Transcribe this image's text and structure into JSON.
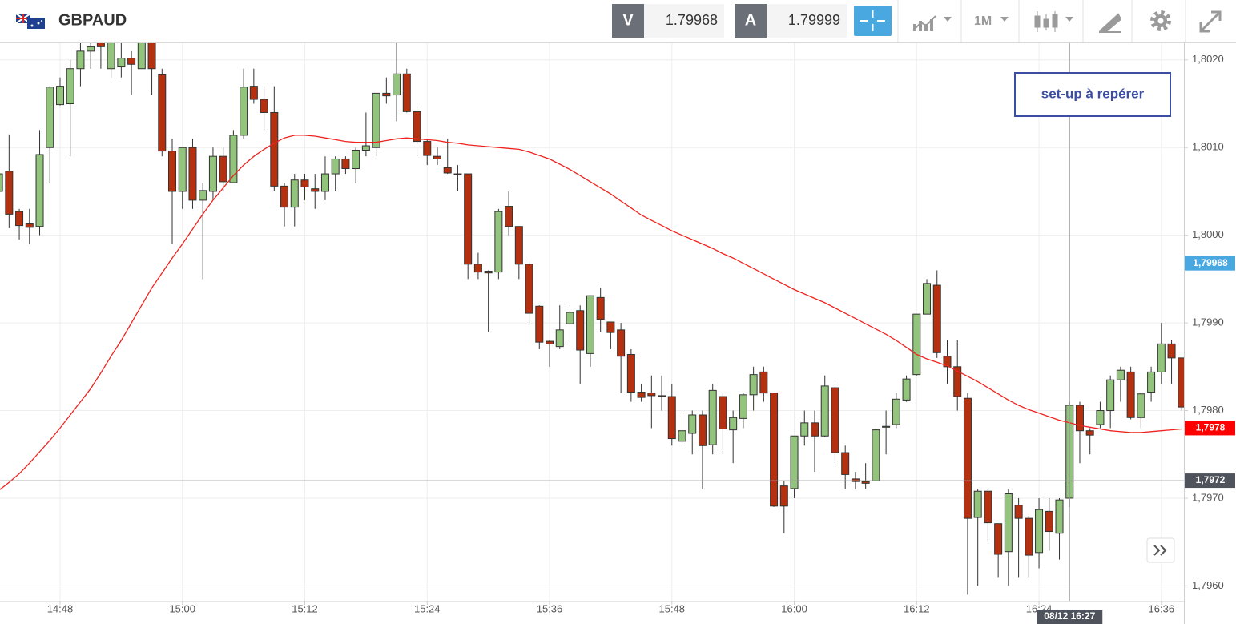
{
  "toolbar": {
    "symbol": "GBPAUD",
    "bid_label": "V",
    "bid": "1.79968",
    "ask_label": "A",
    "ask": "1.79999",
    "timeframe": "1M"
  },
  "chart_data": {
    "type": "candlestick",
    "annotation": "set-up à repérer",
    "up_color": "#93c47d",
    "down_color": "#b5300e",
    "grid": true,
    "ylim": [
      1.79583,
      1.80219
    ],
    "yticks": [
      {
        "value": 1.796,
        "label": "1,7960"
      },
      {
        "value": 1.797,
        "label": "1,7970"
      },
      {
        "value": 1.798,
        "label": "1,7980"
      },
      {
        "value": 1.799,
        "label": "1,7990"
      },
      {
        "value": 1.8,
        "label": "1,8000"
      },
      {
        "value": 1.801,
        "label": "1,8010"
      },
      {
        "value": 1.802,
        "label": "1,8020"
      }
    ],
    "categories": [
      null,
      null,
      null,
      null,
      null,
      null,
      "14:48",
      null,
      null,
      null,
      null,
      null,
      null,
      null,
      null,
      null,
      null,
      null,
      "15:00",
      null,
      null,
      null,
      null,
      null,
      null,
      null,
      null,
      null,
      null,
      null,
      "15:12",
      null,
      null,
      null,
      null,
      null,
      null,
      null,
      null,
      null,
      null,
      null,
      "15:24",
      null,
      null,
      null,
      null,
      null,
      null,
      null,
      null,
      null,
      null,
      null,
      "15:36",
      null,
      null,
      null,
      null,
      null,
      null,
      null,
      null,
      null,
      null,
      null,
      "15:48",
      null,
      null,
      null,
      null,
      null,
      null,
      null,
      null,
      null,
      null,
      null,
      "16:00",
      null,
      null,
      null,
      null,
      null,
      null,
      null,
      null,
      null,
      null,
      null,
      "16:12",
      null,
      null,
      null,
      null,
      null,
      null,
      null,
      null,
      null,
      null,
      null,
      "16:24",
      null,
      null,
      null,
      null,
      null,
      null,
      null,
      null,
      null,
      null,
      null,
      "16:36",
      null,
      null
    ],
    "open": [
      1.8005,
      1.80073,
      1.80027,
      1.80013,
      1.8001,
      1.801,
      1.80149,
      1.8015,
      1.8019,
      1.8021,
      1.8022,
      1.8019,
      1.80192,
      1.80202,
      1.8019,
      1.8022,
      1.80183,
      1.80096,
      1.8005,
      1.801,
      1.8004,
      1.8005,
      1.8009,
      1.8006,
      1.80114,
      1.8017,
      1.80155,
      1.8014,
      1.80056,
      1.80032,
      1.80063,
      1.80053,
      1.8005,
      1.8007,
      1.80087,
      1.80076,
      1.80097,
      1.801,
      1.80162,
      1.8016,
      1.80184,
      1.80141,
      1.80107,
      1.8009,
      1.80077,
      1.8007,
      1.8007,
      1.79967,
      1.79959,
      1.79958,
      1.80033,
      1.8001,
      1.79967,
      1.79919,
      1.79879,
      1.79873,
      1.79899,
      1.79914,
      1.79865,
      1.79929,
      1.79901,
      1.79892,
      1.79864,
      1.79821,
      1.7982,
      1.79817,
      1.79816,
      1.79765,
      1.79774,
      1.79795,
      1.79761,
      1.79816,
      1.79778,
      1.79791,
      1.79818,
      1.79844,
      1.7982,
      1.79714,
      1.79711,
      1.79771,
      1.79786,
      1.79771,
      1.79826,
      1.79752,
      1.79722,
      1.79719,
      1.7972,
      1.79781,
      1.79784,
      1.79812,
      1.79841,
      1.7991,
      1.79943,
      1.79862,
      1.7985,
      1.79814,
      1.79678,
      1.79708,
      1.79671,
      1.79639,
      1.79692,
      1.79677,
      1.79638,
      1.79685,
      1.7966,
      1.797,
      1.79806,
      1.79777,
      1.79784,
      1.798,
      1.79835,
      1.79844,
      1.79792,
      1.79821,
      1.79844,
      1.79876,
      1.7986
    ],
    "high": [
      1.8008,
      1.80115,
      1.8003,
      1.8003,
      1.8012,
      1.8017,
      1.8018,
      1.802,
      1.8022,
      1.8023,
      1.8023,
      1.8023,
      1.8022,
      1.8021,
      1.8023,
      1.8023,
      1.8019,
      1.8011,
      1.801,
      1.8011,
      1.8006,
      1.801,
      1.801,
      1.8012,
      1.8019,
      1.8019,
      1.8017,
      1.8017,
      1.8006,
      1.8007,
      1.8007,
      1.8007,
      1.8009,
      1.8009,
      1.8009,
      1.801,
      1.8014,
      1.8016,
      1.8018,
      1.8022,
      1.8019,
      1.8015,
      1.8011,
      1.801,
      1.8011,
      1.8008,
      1.8007,
      1.7998,
      1.7996,
      1.8003,
      1.8005,
      1.8001,
      1.7997,
      1.7992,
      1.7988,
      1.7992,
      1.7992,
      1.7992,
      1.7993,
      1.7994,
      1.799,
      1.799,
      1.7987,
      1.7983,
      1.7984,
      1.7984,
      1.7983,
      1.798,
      1.798,
      1.798,
      1.7983,
      1.7982,
      1.798,
      1.7982,
      1.7985,
      1.7985,
      1.7982,
      1.7972,
      1.7977,
      1.798,
      1.798,
      1.7984,
      1.7983,
      1.7976,
      1.7973,
      1.7974,
      1.7978,
      1.798,
      1.7982,
      1.7984,
      1.7991,
      1.7995,
      1.7996,
      1.7988,
      1.7988,
      1.7982,
      1.7971,
      1.7971,
      1.7967,
      1.7971,
      1.797,
      1.7968,
      1.797,
      1.797,
      1.797,
      1.7981,
      1.7981,
      1.7978,
      1.7981,
      1.7984,
      1.7985,
      1.7985,
      1.7982,
      1.7985,
      1.799,
      1.7988,
      1.7986
    ],
    "low": [
      1.8003,
      1.80008,
      1.79995,
      1.7999,
      1.8,
      1.8006,
      1.80148,
      1.8009,
      1.8017,
      1.8019,
      1.8019,
      1.8018,
      1.8018,
      1.8016,
      1.8019,
      1.8016,
      1.8009,
      1.7999,
      1.8003,
      1.8003,
      1.7995,
      1.8004,
      1.8005,
      1.8006,
      1.8011,
      1.8015,
      1.8012,
      1.8005,
      1.8001,
      1.8001,
      1.8004,
      1.8003,
      1.8004,
      1.8005,
      1.8007,
      1.8006,
      1.8009,
      1.8009,
      1.8015,
      1.8013,
      1.8014,
      1.8009,
      1.8008,
      1.8008,
      1.8007,
      1.8005,
      1.7995,
      1.7995,
      1.7989,
      1.7995,
      1.8,
      1.7995,
      1.799,
      1.7987,
      1.7985,
      1.7987,
      1.7988,
      1.7983,
      1.7985,
      1.7989,
      1.7987,
      1.7982,
      1.7981,
      1.7981,
      1.7978,
      1.798,
      1.7976,
      1.7976,
      1.7975,
      1.7971,
      1.7975,
      1.7975,
      1.7974,
      1.7978,
      1.798,
      1.7981,
      1.7969,
      1.7966,
      1.797,
      1.7976,
      1.7973,
      1.7977,
      1.7974,
      1.7971,
      1.7971,
      1.7971,
      1.7972,
      1.7975,
      1.7978,
      1.7981,
      1.7984,
      1.7991,
      1.7986,
      1.7983,
      1.798,
      1.7959,
      1.796,
      1.7965,
      1.7961,
      1.796,
      1.7961,
      1.7961,
      1.7962,
      1.7964,
      1.7963,
      1.7969,
      1.7974,
      1.7975,
      1.7978,
      1.7978,
      1.7981,
      1.7979,
      1.7978,
      1.7981,
      1.7983,
      1.7983,
      1.798
    ],
    "close": [
      1.8007,
      1.80024,
      1.80011,
      1.80009,
      1.80092,
      1.80169,
      1.8017,
      1.8019,
      1.8021,
      1.80215,
      1.80215,
      1.8022,
      1.80202,
      1.80195,
      1.8022,
      1.8019,
      1.80096,
      1.8005,
      1.801,
      1.8004,
      1.80051,
      1.8009,
      1.80061,
      1.80114,
      1.80169,
      1.80155,
      1.8014,
      1.80056,
      1.80032,
      1.80063,
      1.80055,
      1.8005,
      1.8007,
      1.80087,
      1.80076,
      1.80097,
      1.80102,
      1.80162,
      1.80159,
      1.80184,
      1.80141,
      1.80107,
      1.80091,
      1.80087,
      1.80071,
      1.80069,
      1.79967,
      1.79958,
      1.79957,
      1.80027,
      1.8001,
      1.79967,
      1.79911,
      1.79878,
      1.79876,
      1.79892,
      1.79912,
      1.79869,
      1.79931,
      1.79904,
      1.79889,
      1.79862,
      1.79821,
      1.79815,
      1.79817,
      1.79816,
      1.79768,
      1.79777,
      1.79795,
      1.7976,
      1.79823,
      1.79779,
      1.79792,
      1.79818,
      1.79841,
      1.7982,
      1.79691,
      1.79691,
      1.79771,
      1.79786,
      1.79771,
      1.79828,
      1.79752,
      1.79727,
      1.79719,
      1.79717,
      1.79778,
      1.79782,
      1.79813,
      1.79836,
      1.7991,
      1.79945,
      1.79866,
      1.7985,
      1.79816,
      1.79677,
      1.79708,
      1.79672,
      1.79636,
      1.79705,
      1.79677,
      1.79635,
      1.79687,
      1.79662,
      1.79698,
      1.79806,
      1.79777,
      1.79772,
      1.798,
      1.79835,
      1.79846,
      1.79792,
      1.79819,
      1.79844,
      1.79876,
      1.7986,
      1.79804
    ],
    "moving_average": {
      "color": "#f0231f",
      "values": [
        1.79709,
        1.79718,
        1.79728,
        1.7974,
        1.79753,
        1.79766,
        1.7978,
        1.79795,
        1.7981,
        1.79825,
        1.79843,
        1.79862,
        1.7988,
        1.799,
        1.7992,
        1.7994,
        1.79957,
        1.79974,
        1.7999,
        1.80007,
        1.80024,
        1.8004,
        1.80054,
        1.80068,
        1.8008,
        1.8009,
        1.80098,
        1.80105,
        1.80111,
        1.80114,
        1.80114,
        1.80113,
        1.80111,
        1.80109,
        1.80107,
        1.80106,
        1.80106,
        1.80106,
        1.80108,
        1.8011,
        1.80111,
        1.8011,
        1.80109,
        1.80108,
        1.80106,
        1.80105,
        1.80103,
        1.80102,
        1.80101,
        1.801,
        1.80099,
        1.80098,
        1.80095,
        1.80091,
        1.80087,
        1.80081,
        1.80075,
        1.80068,
        1.80061,
        1.80054,
        1.80047,
        1.80039,
        1.80031,
        1.80023,
        1.80017,
        1.80011,
        1.80005,
        1.8,
        1.79995,
        1.7999,
        1.79985,
        1.79979,
        1.79974,
        1.79968,
        1.79962,
        1.79956,
        1.7995,
        1.79944,
        1.79938,
        1.79933,
        1.79928,
        1.79923,
        1.79917,
        1.79911,
        1.79905,
        1.79899,
        1.79893,
        1.79887,
        1.7988,
        1.79872,
        1.79864,
        1.79859,
        1.79855,
        1.79851,
        1.79845,
        1.79839,
        1.79833,
        1.79826,
        1.79819,
        1.79812,
        1.79806,
        1.79801,
        1.79797,
        1.79793,
        1.79789,
        1.79786,
        1.79783,
        1.79781,
        1.79779,
        1.79777,
        1.79776,
        1.79775,
        1.79775,
        1.79776,
        1.79777,
        1.79778,
        1.79779
      ]
    },
    "price_markers": [
      {
        "value": 1.79968,
        "label": "1,79968",
        "color": "#4aa8e0"
      },
      {
        "value": 1.7978,
        "label": "1,7978",
        "color": "#ff0000"
      }
    ],
    "crosshair": {
      "index": 105,
      "time_label": "08/12 16:27",
      "value": 1.7972,
      "value_label": "1,7972",
      "color": "#4f545c"
    }
  }
}
